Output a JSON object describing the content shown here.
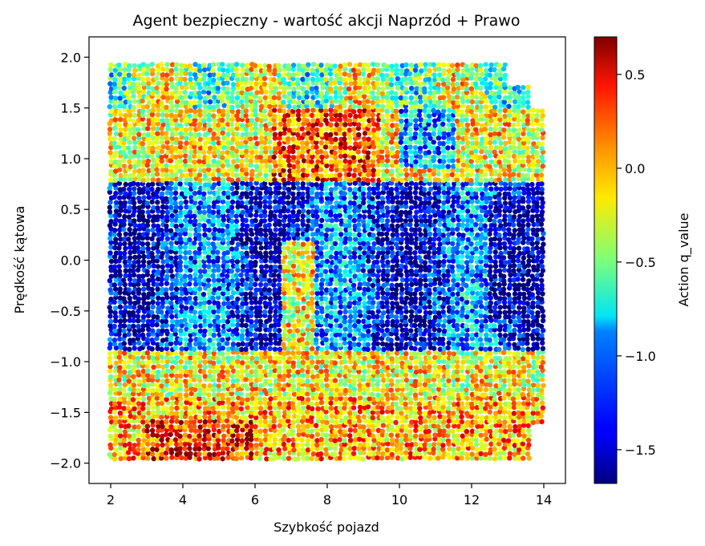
{
  "chart_data": {
    "type": "scatter",
    "title": "Agent bezpieczny - wartość akcji Naprzód + Prawo",
    "xlabel": "Szybkość pojazd",
    "ylabel": "Prędkość kątowa",
    "xlim": [
      1.4,
      14.6
    ],
    "ylim": [
      -2.2,
      2.2
    ],
    "xticks": [
      "2",
      "4",
      "6",
      "8",
      "10",
      "12",
      "14"
    ],
    "yticks": [
      "2.0",
      "1.5",
      "1.0",
      "0.5",
      "0.0",
      "−0.5",
      "−1.0",
      "−1.5",
      "−2.0"
    ],
    "colorbar": {
      "label": "Action q_value",
      "colormap": "jet",
      "range": [
        -1.68,
        0.7
      ],
      "ticks": [
        "0.5",
        "0.0",
        "−0.5",
        "−1.0",
        "−1.5"
      ]
    },
    "value_field": {
      "description": "dense sampled grid of points (x: 2–14, y: −2 to 2), coloured by q_value",
      "regions": [
        {
          "x_range": [
            2,
            14
          ],
          "y_range": [
            -0.9,
            0.9
          ],
          "approx_q": -1.35
        },
        {
          "x_range": [
            6.5,
            9.5
          ],
          "y_range": [
            0.8,
            1.5
          ],
          "approx_q": 0.2
        },
        {
          "x_range": [
            2,
            14
          ],
          "y_range": [
            1.5,
            1.95
          ],
          "approx_q": -0.45
        },
        {
          "x_range": [
            2,
            7
          ],
          "y_range": [
            -1.8,
            -1.3
          ],
          "approx_q": 0.05
        },
        {
          "x_range": [
            3,
            6
          ],
          "y_range": [
            -1.9,
            -1.6
          ],
          "approx_q": 0.35
        },
        {
          "x_range": [
            12.5,
            14
          ],
          "y_range": [
            -0.5,
            0.5
          ],
          "approx_q": -1.6
        }
      ]
    }
  }
}
